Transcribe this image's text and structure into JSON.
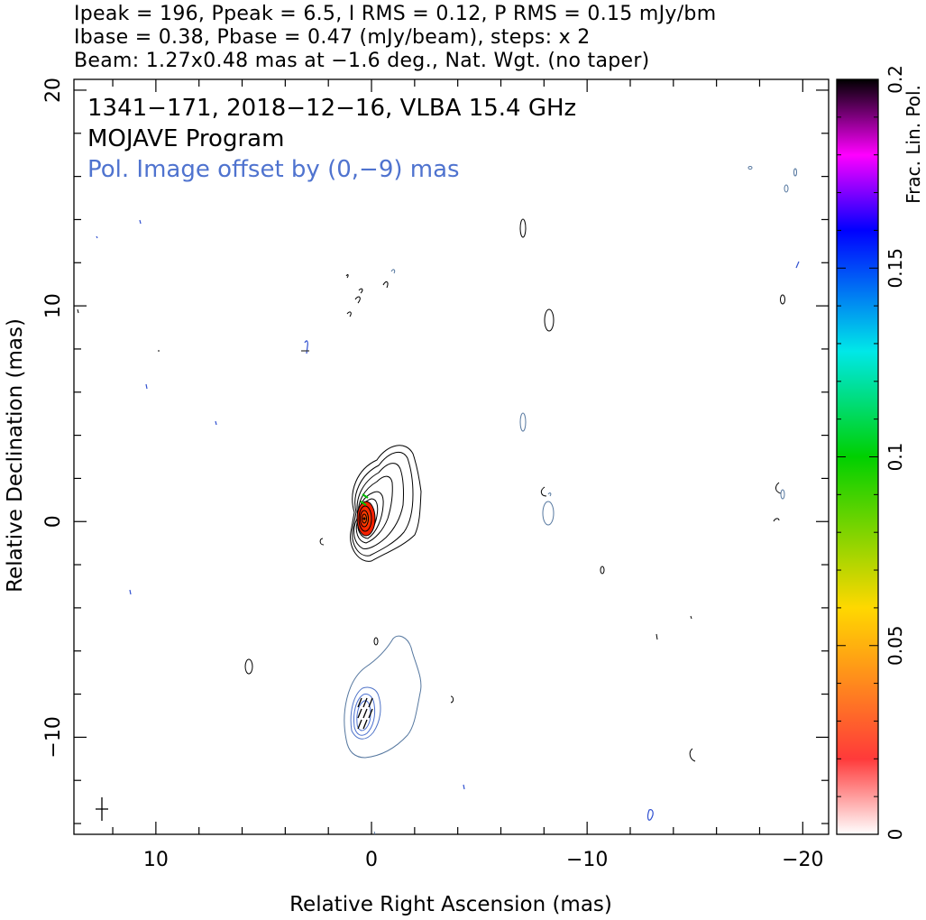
{
  "header": {
    "line1": "Ipeak = 196, Ppeak = 6.5, I RMS = 0.12, P RMS = 0.15 mJy/bm",
    "line2": "Ibase = 0.38, Pbase = 0.47 (mJy/beam), steps: x 2",
    "line3": "Beam: 1.27x0.48 mas at −1.6 deg., Nat. Wgt. (no taper)"
  },
  "plot": {
    "annotation1": "1341−171, 2018−12−16, VLBA 15.4 GHz",
    "annotation2": "MOJAVE Program",
    "annotation3": "Pol. Image offset by (0,−9) mas",
    "annotation3_color": "#4f73cf",
    "xlabel": "Relative Right Ascension (mas)",
    "ylabel": "Relative Declination (mas)",
    "colorbar_label": "Frac. Lin. Pol."
  },
  "chart_data": {
    "type": "contour",
    "xlim": [
      13.8,
      -21.2
    ],
    "ylim": [
      -14.5,
      20.5
    ],
    "x_ticks": [
      10,
      0,
      -10,
      -20
    ],
    "x_tick_labels": [
      "10",
      "0",
      "−10",
      "−20"
    ],
    "y_ticks": [
      -10,
      0,
      10,
      20
    ],
    "y_tick_labels": [
      "−10",
      "0",
      "10",
      "20"
    ],
    "colorbar": {
      "min": 0,
      "max": 0.2,
      "ticks": [
        0,
        0.05,
        0.1,
        0.15,
        0.2
      ],
      "tick_labels": [
        "0",
        "0.05",
        "0.1",
        "0.15",
        "0.2"
      ]
    },
    "stokes_i_core": {
      "x": 0,
      "y": 0,
      "peak_mjy_per_beam": 196
    },
    "pol_image_offset_mas": [
      0,
      -9
    ],
    "beam": {
      "major_mas": 1.27,
      "minor_mas": 0.48,
      "pa_deg": -1.6
    }
  }
}
